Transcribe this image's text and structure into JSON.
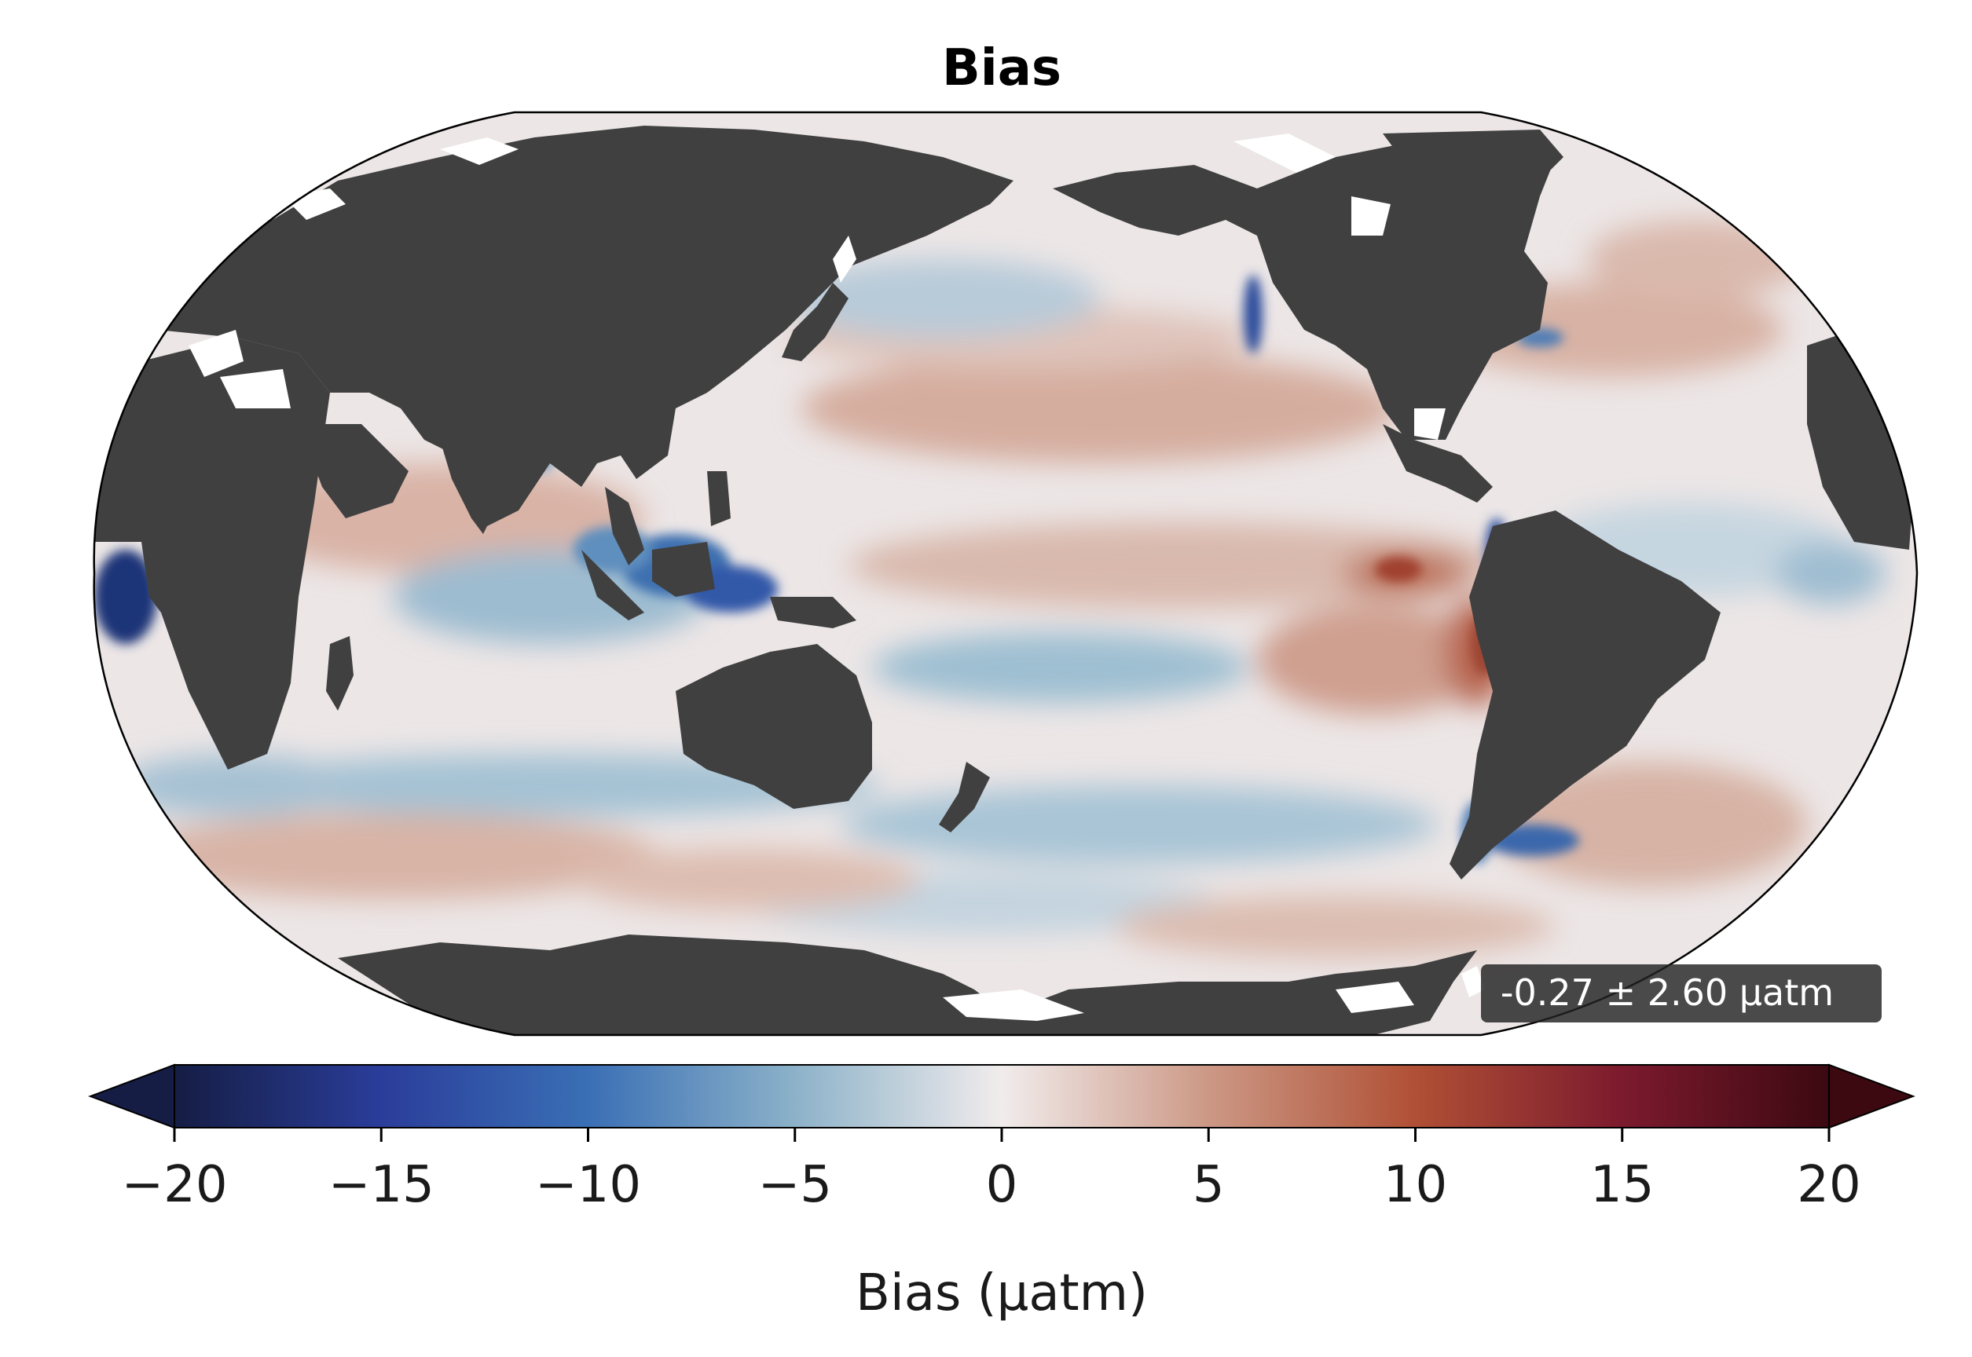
{
  "map": {
    "title": "Bias",
    "stat_annotation": "-0.27 ± 2.60 µatm",
    "projection": "robinson",
    "central_longitude": "180",
    "colormap": "diverging blue-white-red (balance)",
    "land_color": "#404040",
    "missing_color": "#ffffff",
    "frame_color": "#000000"
  },
  "colorbar": {
    "label": "Bias (µatm)",
    "min": -20,
    "max": 20,
    "extend": "both",
    "ticks": [
      -20,
      -15,
      -10,
      -5,
      0,
      5,
      10,
      15,
      20
    ],
    "tick_labels": [
      "−20",
      "−15",
      "−10",
      "−5",
      "0",
      "5",
      "10",
      "15",
      "20"
    ],
    "stops": [
      {
        "value": -20,
        "color": "#151d44"
      },
      {
        "value": -15,
        "color": "#2a3d9a"
      },
      {
        "value": -10,
        "color": "#3a6fb5"
      },
      {
        "value": -5,
        "color": "#8cb2c9"
      },
      {
        "value": 0,
        "color": "#f1ecec"
      },
      {
        "value": 5,
        "color": "#cc9885"
      },
      {
        "value": 10,
        "color": "#b05035"
      },
      {
        "value": 15,
        "color": "#7c1a2e"
      },
      {
        "value": 20,
        "color": "#3c0911"
      }
    ],
    "under_color": "#151d44",
    "over_color": "#3c0911"
  }
}
